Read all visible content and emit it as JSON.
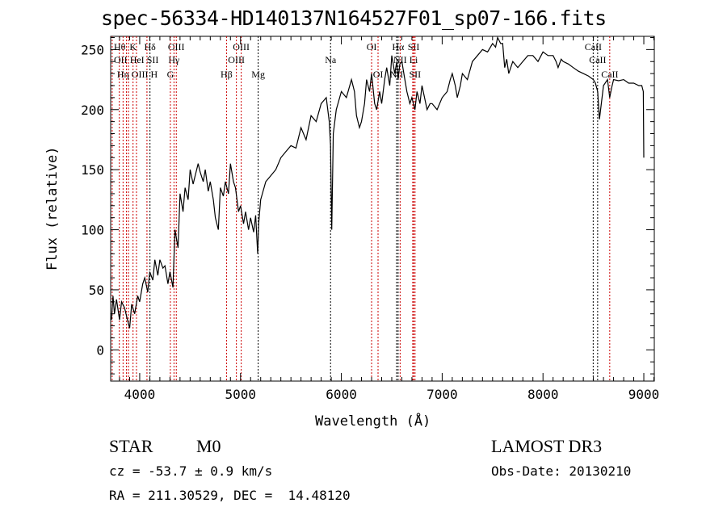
{
  "chart_data": {
    "type": "line",
    "title": "spec-56334-HD140137N164527F01_sp07-166.fits",
    "xlabel": "Wavelength (Å)",
    "ylabel": "Flux (relative)",
    "xlim": [
      3712,
      9104
    ],
    "ylim": [
      -26,
      261
    ],
    "xticks": [
      4000,
      5000,
      6000,
      7000,
      8000,
      9000
    ],
    "yticks": [
      0,
      50,
      100,
      150,
      200,
      250
    ],
    "grid": false,
    "series": [
      {
        "name": "spectrum",
        "x": [
          3720,
          3735,
          3750,
          3770,
          3800,
          3820,
          3850,
          3870,
          3900,
          3920,
          3950,
          3980,
          4000,
          4030,
          4050,
          4080,
          4100,
          4130,
          4150,
          4180,
          4200,
          4230,
          4250,
          4280,
          4300,
          4330,
          4350,
          4380,
          4400,
          4430,
          4450,
          4480,
          4500,
          4530,
          4550,
          4580,
          4600,
          4630,
          4650,
          4680,
          4700,
          4730,
          4750,
          4780,
          4800,
          4830,
          4850,
          4880,
          4900,
          4930,
          4950,
          4980,
          5000,
          5030,
          5050,
          5080,
          5100,
          5130,
          5150,
          5170,
          5180,
          5200,
          5250,
          5300,
          5350,
          5400,
          5450,
          5500,
          5550,
          5600,
          5650,
          5700,
          5750,
          5800,
          5850,
          5880,
          5893,
          5905,
          5920,
          5950,
          6000,
          6050,
          6100,
          6130,
          6150,
          6180,
          6200,
          6230,
          6250,
          6280,
          6300,
          6330,
          6350,
          6380,
          6400,
          6430,
          6450,
          6480,
          6500,
          6530,
          6550,
          6563,
          6580,
          6600,
          6630,
          6650,
          6680,
          6700,
          6730,
          6750,
          6780,
          6800,
          6830,
          6850,
          6880,
          6900,
          6950,
          7000,
          7050,
          7080,
          7100,
          7130,
          7150,
          7180,
          7200,
          7250,
          7300,
          7350,
          7400,
          7450,
          7500,
          7530,
          7550,
          7580,
          7600,
          7620,
          7640,
          7660,
          7700,
          7750,
          7800,
          7850,
          7900,
          7950,
          8000,
          8050,
          8100,
          8130,
          8150,
          8180,
          8200,
          8250,
          8300,
          8350,
          8400,
          8450,
          8500,
          8520,
          8542,
          8560,
          8600,
          8640,
          8662,
          8680,
          8700,
          8750,
          8800,
          8850,
          8900,
          8950,
          8980,
          8995,
          9000
        ],
        "y": [
          25,
          45,
          30,
          42,
          25,
          40,
          35,
          28,
          18,
          38,
          30,
          45,
          40,
          55,
          60,
          48,
          65,
          58,
          75,
          62,
          75,
          68,
          70,
          55,
          65,
          52,
          100,
          85,
          130,
          115,
          135,
          125,
          150,
          138,
          145,
          155,
          148,
          140,
          150,
          132,
          140,
          125,
          110,
          100,
          135,
          128,
          140,
          130,
          155,
          140,
          135,
          115,
          120,
          105,
          115,
          100,
          110,
          98,
          112,
          80,
          105,
          125,
          140,
          145,
          150,
          160,
          165,
          170,
          168,
          185,
          175,
          195,
          190,
          205,
          210,
          190,
          170,
          100,
          180,
          200,
          215,
          210,
          225,
          215,
          195,
          185,
          190,
          205,
          225,
          215,
          230,
          205,
          200,
          215,
          205,
          225,
          235,
          220,
          245,
          230,
          240,
          225,
          238,
          240,
          225,
          215,
          205,
          210,
          200,
          215,
          205,
          220,
          208,
          200,
          205,
          205,
          200,
          210,
          215,
          225,
          230,
          220,
          210,
          220,
          230,
          225,
          240,
          245,
          250,
          248,
          255,
          252,
          260,
          255,
          255,
          235,
          242,
          230,
          240,
          235,
          240,
          245,
          245,
          240,
          248,
          245,
          245,
          240,
          235,
          242,
          240,
          238,
          235,
          232,
          230,
          228,
          225,
          222,
          215,
          192,
          220,
          225,
          210,
          218,
          225,
          224,
          225,
          222,
          222,
          220,
          220,
          215,
          160
        ]
      }
    ],
    "lines": [
      {
        "label": "Hθ",
        "wl": 3798,
        "row": 0,
        "color": "#cc0000"
      },
      {
        "label": "K",
        "wl": 3934,
        "row": 0,
        "color": "#cc0000"
      },
      {
        "label": "Hδ",
        "wl": 4102,
        "row": 0,
        "color": "#000000"
      },
      {
        "label": "OIII",
        "wl": 4363,
        "row": 0,
        "color": "#cc0000"
      },
      {
        "label": "OIII",
        "wl": 5007,
        "row": 0,
        "color": "#cc0000"
      },
      {
        "label": "OI",
        "wl": 6300,
        "row": 0,
        "color": "#cc0000"
      },
      {
        "label": "Hα",
        "wl": 6563,
        "row": 0,
        "color": "#000000"
      },
      {
        "label": "SII",
        "wl": 6717,
        "row": 0,
        "color": "#cc0000"
      },
      {
        "label": "CaII",
        "wl": 8498,
        "row": 0,
        "color": "#000000"
      },
      {
        "label": "OII",
        "wl": 3727,
        "row": 1,
        "color": "#cc0000"
      },
      {
        "label": "HeI",
        "wl": 3889,
        "row": 1,
        "color": "#cc0000"
      },
      {
        "label": "SII",
        "wl": 4072,
        "row": 1,
        "color": "#cc0000"
      },
      {
        "label": "Hγ",
        "wl": 4340,
        "row": 1,
        "color": "#cc0000"
      },
      {
        "label": "OIII",
        "wl": 4959,
        "row": 1,
        "color": "#cc0000"
      },
      {
        "label": "Na",
        "wl": 5893,
        "row": 1,
        "color": "#000000"
      },
      {
        "label": "NII",
        "wl": 6583,
        "row": 1,
        "color": "#cc0000"
      },
      {
        "label": "Li",
        "wl": 6708,
        "row": 1,
        "color": "#cc0000"
      },
      {
        "label": "CaII",
        "wl": 8542,
        "row": 1,
        "color": "#000000"
      },
      {
        "label": "OIII",
        "wl": 3869,
        "row": 2,
        "color": "#cc0000"
      },
      {
        "label": "Hη",
        "wl": 3835,
        "row": 2,
        "color": "#cc0000"
      },
      {
        "label": "H",
        "wl": 3968,
        "row": 2,
        "color": "#cc0000"
      },
      {
        "label": "G",
        "wl": 4304,
        "row": 2,
        "color": "#cc0000"
      },
      {
        "label": "Hβ",
        "wl": 4861,
        "row": 2,
        "color": "#cc0000"
      },
      {
        "label": "Mg",
        "wl": 5175,
        "row": 2,
        "color": "#000000"
      },
      {
        "label": "OI",
        "wl": 6364,
        "row": 2,
        "color": "#cc0000"
      },
      {
        "label": "NII",
        "wl": 6548,
        "row": 2,
        "color": "#000000"
      },
      {
        "label": "SII",
        "wl": 6731,
        "row": 2,
        "color": "#cc0000"
      },
      {
        "label": "CaII",
        "wl": 8662,
        "row": 2,
        "color": "#cc0000"
      }
    ]
  },
  "info": {
    "class": "STAR",
    "subclass": "M0",
    "cz": "cz = -53.7 ± 0.9 km/s",
    "radec": "RA = 211.30529, DEC =  14.48120",
    "survey": "LAMOST DR3",
    "obsdate": "Obs-Date: 20130210"
  }
}
